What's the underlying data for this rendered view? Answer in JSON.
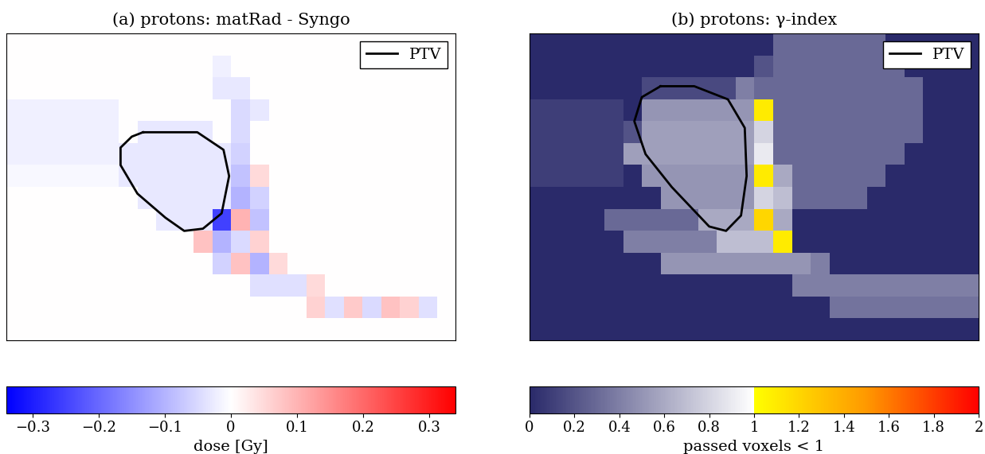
{
  "chart_data": [
    {
      "type": "heatmap",
      "title": "(a) protons: matRad - Syngo",
      "tick_labels": false,
      "legend": "upper right",
      "xlim": [
        0,
        24
      ],
      "ylim": [
        14,
        0
      ],
      "cells": [
        [
          0,
          0,
          0,
          0,
          0,
          0,
          0,
          0,
          0,
          0,
          0,
          0,
          0,
          0,
          0,
          0,
          0,
          0,
          0,
          0,
          0,
          0,
          0,
          0
        ],
        [
          0,
          0,
          0,
          0,
          0,
          0,
          0,
          0,
          0,
          0,
          0,
          -0.02,
          0,
          0,
          0,
          0,
          0,
          0,
          0,
          0,
          0,
          0,
          0,
          0
        ],
        [
          0,
          0,
          0,
          0,
          0,
          0,
          0,
          0,
          0,
          0,
          0,
          -0.03,
          -0.03,
          0,
          0,
          0,
          0,
          0,
          0,
          0,
          0,
          0,
          0,
          0
        ],
        [
          -0.02,
          -0.02,
          -0.02,
          -0.02,
          -0.02,
          -0.02,
          0,
          0,
          0,
          0,
          0,
          0,
          -0.05,
          -0.03,
          0,
          0,
          0,
          0,
          0,
          0,
          0,
          0,
          0,
          0
        ],
        [
          -0.02,
          -0.02,
          -0.02,
          -0.02,
          -0.02,
          -0.02,
          0,
          -0.03,
          -0.03,
          -0.03,
          -0.03,
          0,
          -0.05,
          0,
          0,
          0,
          0,
          0,
          0,
          0,
          0,
          0,
          0,
          0
        ],
        [
          -0.02,
          -0.02,
          -0.02,
          -0.02,
          -0.02,
          -0.02,
          -0.03,
          -0.03,
          -0.03,
          -0.03,
          -0.03,
          -0.03,
          -0.06,
          0,
          0,
          0,
          0,
          0,
          0,
          0,
          0,
          0,
          0,
          0
        ],
        [
          -0.01,
          -0.01,
          -0.01,
          -0.01,
          -0.01,
          -0.01,
          -0.03,
          -0.03,
          -0.03,
          -0.03,
          -0.03,
          -0.03,
          -0.08,
          0.05,
          0,
          0,
          0,
          0,
          0,
          0,
          0,
          0,
          0,
          0
        ],
        [
          0,
          0,
          0,
          0,
          0,
          0,
          0,
          -0.03,
          -0.03,
          -0.03,
          -0.03,
          -0.03,
          -0.1,
          -0.06,
          0,
          0,
          0,
          0,
          0,
          0,
          0,
          0,
          0,
          0
        ],
        [
          0,
          0,
          0,
          0,
          0,
          0,
          0,
          0,
          -0.03,
          -0.03,
          -0.03,
          -0.25,
          0.1,
          -0.08,
          0,
          0,
          0,
          0,
          0,
          0,
          0,
          0,
          0,
          0
        ],
        [
          0,
          0,
          0,
          0,
          0,
          0,
          0,
          0,
          0,
          0,
          0.08,
          -0.1,
          -0.05,
          0.06,
          0,
          0,
          0,
          0,
          0,
          0,
          0,
          0,
          0,
          0
        ],
        [
          0,
          0,
          0,
          0,
          0,
          0,
          0,
          0,
          0,
          0,
          0,
          -0.06,
          0.08,
          -0.1,
          0.05,
          0,
          0,
          0,
          0,
          0,
          0,
          0,
          0,
          0
        ],
        [
          0,
          0,
          0,
          0,
          0,
          0,
          0,
          0,
          0,
          0,
          0,
          0,
          0,
          -0.04,
          -0.04,
          -0.04,
          0.05,
          0,
          0,
          0,
          0,
          0,
          0,
          0
        ],
        [
          0,
          0,
          0,
          0,
          0,
          0,
          0,
          0,
          0,
          0,
          0,
          0,
          0,
          0,
          0,
          0,
          0.06,
          -0.04,
          0.07,
          -0.05,
          0.08,
          0.06,
          -0.04,
          0
        ],
        [
          0,
          0,
          0,
          0,
          0,
          0,
          0,
          0,
          0,
          0,
          0,
          0,
          0,
          0,
          0,
          0,
          0,
          0,
          0,
          0,
          0,
          0,
          0,
          0
        ]
      ],
      "colorbar_range": [
        -0.34,
        0.34
      ],
      "colorbar_ticks": [
        {
          "value": -0.3,
          "label": "−0.3"
        },
        {
          "value": -0.2,
          "label": "−0.2"
        },
        {
          "value": -0.1,
          "label": "−0.1"
        },
        0,
        0.1,
        0.2,
        0.3
      ],
      "colorbar_label": "dose [Gy]",
      "series": [
        {
          "name": "PTV",
          "color": "#000000",
          "x": [
            7.3,
            10.2,
            11.6,
            11.9,
            11.5,
            10.5,
            9.5,
            8.5,
            7.0,
            6.1,
            6.1,
            6.7,
            7.3
          ],
          "y": [
            4.5,
            4.5,
            5.3,
            6.5,
            8.2,
            8.9,
            9.0,
            8.4,
            7.3,
            6.0,
            5.2,
            4.7,
            4.5
          ]
        }
      ]
    },
    {
      "type": "heatmap",
      "title": "(b) protons: γ-index",
      "tick_labels": false,
      "legend": "upper right",
      "xlim": [
        0,
        24
      ],
      "ylim": [
        14,
        0
      ],
      "cells": [
        [
          0,
          0,
          0,
          0,
          0,
          0,
          0,
          0,
          0,
          0,
          0,
          0,
          0,
          0.3,
          0.3,
          0.3,
          0.3,
          0.3,
          0.3,
          0,
          0,
          0,
          0,
          0
        ],
        [
          0,
          0,
          0,
          0,
          0,
          0,
          0,
          0,
          0,
          0,
          0,
          0,
          0.2,
          0.3,
          0.3,
          0.3,
          0.3,
          0.3,
          0.3,
          0.3,
          0,
          0,
          0,
          0
        ],
        [
          0,
          0,
          0,
          0,
          0,
          0,
          0.15,
          0.15,
          0.15,
          0.15,
          0.15,
          0.4,
          0.3,
          0.3,
          0.3,
          0.3,
          0.3,
          0.3,
          0.3,
          0.3,
          0.3,
          0,
          0,
          0
        ],
        [
          0.1,
          0.1,
          0.1,
          0.1,
          0.1,
          0,
          0.5,
          0.5,
          0.5,
          0.5,
          0.5,
          0.5,
          1.1,
          0.3,
          0.3,
          0.3,
          0.3,
          0.3,
          0.3,
          0.3,
          0.3,
          0,
          0,
          0
        ],
        [
          0.1,
          0.1,
          0.1,
          0.1,
          0.1,
          0.2,
          0.55,
          0.55,
          0.55,
          0.55,
          0.55,
          0.55,
          0.8,
          0.3,
          0.3,
          0.3,
          0.3,
          0.3,
          0.3,
          0.3,
          0.3,
          0,
          0,
          0
        ],
        [
          0.1,
          0.1,
          0.1,
          0.1,
          0.1,
          0.55,
          0.55,
          0.55,
          0.55,
          0.55,
          0.55,
          0.55,
          0.9,
          0.3,
          0.3,
          0.3,
          0.3,
          0.3,
          0.3,
          0.3,
          0,
          0,
          0,
          0
        ],
        [
          0.1,
          0.1,
          0.1,
          0.1,
          0.1,
          0,
          0.5,
          0.5,
          0.5,
          0.5,
          0.5,
          0.5,
          1.1,
          0.6,
          0.3,
          0.3,
          0.3,
          0.3,
          0.3,
          0,
          0,
          0,
          0,
          0
        ],
        [
          0,
          0,
          0,
          0,
          0,
          0,
          0,
          0.5,
          0.5,
          0.5,
          0.5,
          0.5,
          0.8,
          0.7,
          0.3,
          0.3,
          0.3,
          0.3,
          0,
          0,
          0,
          0,
          0,
          0
        ],
        [
          0,
          0,
          0,
          0,
          0.3,
          0.3,
          0.3,
          0.3,
          0.3,
          0.6,
          0.6,
          0.6,
          1.2,
          0.6,
          0,
          0,
          0,
          0,
          0,
          0,
          0,
          0,
          0,
          0
        ],
        [
          0,
          0,
          0,
          0,
          0,
          0.4,
          0.4,
          0.4,
          0.4,
          0.4,
          0.7,
          0.7,
          0.7,
          1.1,
          0,
          0,
          0,
          0,
          0,
          0,
          0,
          0,
          0,
          0
        ],
        [
          0,
          0,
          0,
          0,
          0,
          0,
          0,
          0.5,
          0.5,
          0.5,
          0.5,
          0.5,
          0.5,
          0.5,
          0.5,
          0.4,
          0,
          0,
          0,
          0,
          0,
          0,
          0,
          0
        ],
        [
          0,
          0,
          0,
          0,
          0,
          0,
          0,
          0,
          0,
          0,
          0,
          0,
          0,
          0,
          0.4,
          0.4,
          0.4,
          0.4,
          0.4,
          0.4,
          0.4,
          0.4,
          0.4,
          0.4
        ],
        [
          0,
          0,
          0,
          0,
          0,
          0,
          0,
          0,
          0,
          0,
          0,
          0,
          0,
          0,
          0,
          0,
          0.35,
          0.35,
          0.35,
          0.35,
          0.35,
          0.35,
          0.35,
          0.35
        ],
        [
          0,
          0,
          0,
          0,
          0,
          0,
          0,
          0,
          0,
          0,
          0,
          0,
          0,
          0,
          0,
          0,
          0,
          0,
          0,
          0,
          0,
          0,
          0,
          0
        ]
      ],
      "colorbar_range": [
        0,
        2
      ],
      "colorbar_ticks": [
        0,
        0.2,
        0.4,
        0.6,
        0.8,
        1,
        1.2,
        1.4,
        1.6,
        1.8,
        2
      ],
      "colorbar_label": "passed voxels < 1",
      "series": [
        {
          "name": "PTV",
          "color": "#000000",
          "x": [
            7.0,
            8.8,
            10.6,
            11.5,
            11.6,
            11.3,
            10.5,
            9.6,
            7.6,
            6.2,
            5.6,
            6.0,
            7.0
          ],
          "y": [
            2.4,
            2.4,
            3.0,
            4.3,
            6.5,
            8.3,
            9.0,
            8.8,
            7.0,
            5.5,
            4.0,
            2.9,
            2.4
          ]
        }
      ]
    }
  ]
}
